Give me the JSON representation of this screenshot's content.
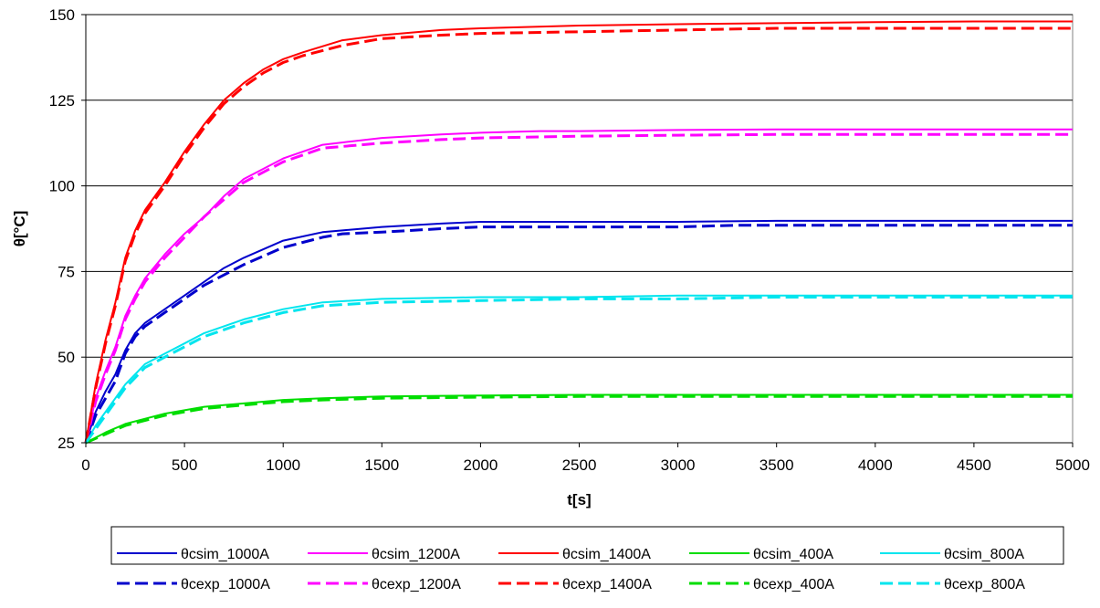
{
  "chart_data": {
    "type": "line",
    "title": "",
    "xlabel": "t[s]",
    "ylabel": "θ[°C]",
    "xlim": [
      0,
      5000
    ],
    "ylim": [
      25,
      150
    ],
    "xticks": [
      0,
      500,
      1000,
      1500,
      2000,
      2500,
      3000,
      3500,
      4000,
      4500,
      5000
    ],
    "yticks": [
      25,
      50,
      75,
      100,
      125,
      150
    ],
    "grid": "horizontal",
    "legend_position": "bottom",
    "series": [
      {
        "name": "θcsim_1000A",
        "color": "#0000cc",
        "style": "solid",
        "x": [
          0,
          50,
          100,
          150,
          200,
          250,
          300,
          400,
          500,
          600,
          700,
          800,
          1000,
          1200,
          1300,
          1500,
          1800,
          2000,
          2500,
          3000,
          3500,
          4000,
          4500,
          5000
        ],
        "y": [
          25,
          34,
          40,
          45,
          52,
          57,
          60,
          64,
          68,
          72,
          76,
          79,
          84,
          86.5,
          87,
          88,
          89,
          89.5,
          89.5,
          89.5,
          89.8,
          89.8,
          89.8,
          89.8
        ]
      },
      {
        "name": "θcsim_1200A",
        "color": "#ff00ff",
        "style": "solid",
        "x": [
          0,
          50,
          100,
          150,
          200,
          250,
          300,
          400,
          500,
          600,
          700,
          800,
          1000,
          1200,
          1500,
          1800,
          2000,
          2300,
          2500,
          3000,
          3500,
          4000,
          4500,
          5000
        ],
        "y": [
          25,
          38,
          46,
          53,
          62,
          68,
          73,
          80,
          86,
          91,
          97,
          102,
          108,
          112,
          114,
          115,
          115.5,
          116,
          116,
          116.3,
          116.5,
          116.5,
          116.5,
          116.5
        ]
      },
      {
        "name": "θcsim_1400A",
        "color": "#ff0000",
        "style": "solid",
        "x": [
          0,
          50,
          100,
          150,
          200,
          250,
          300,
          400,
          500,
          600,
          700,
          800,
          900,
          1000,
          1100,
          1300,
          1500,
          1800,
          2000,
          2500,
          3000,
          3500,
          4000,
          4500,
          5000
        ],
        "y": [
          25,
          42,
          55,
          66,
          79,
          87,
          93,
          101,
          110,
          118,
          125,
          130,
          134,
          137,
          139,
          142.5,
          144,
          145.5,
          146,
          146.8,
          147.2,
          147.5,
          147.8,
          148,
          148
        ]
      },
      {
        "name": "θcsim_400A",
        "color": "#00dd00",
        "style": "solid",
        "x": [
          0,
          100,
          200,
          300,
          400,
          500,
          600,
          800,
          1000,
          1200,
          1500,
          2000,
          2500,
          3000,
          3500,
          4000,
          4500,
          5000
        ],
        "y": [
          25,
          28,
          30.5,
          32,
          33.5,
          34.5,
          35.5,
          36.5,
          37.5,
          38,
          38.5,
          38.8,
          39,
          39,
          39,
          39,
          39,
          39
        ]
      },
      {
        "name": "θcsim_800A",
        "color": "#00e5ee",
        "style": "solid",
        "x": [
          0,
          50,
          100,
          150,
          200,
          250,
          300,
          400,
          500,
          600,
          700,
          800,
          1000,
          1200,
          1500,
          2000,
          2500,
          3000,
          3500,
          4000,
          4500,
          5000
        ],
        "y": [
          25,
          30,
          34,
          38,
          42,
          45,
          48,
          51,
          54,
          57,
          59,
          61,
          64,
          66,
          67,
          67.5,
          67.5,
          68,
          68,
          68,
          68,
          68
        ]
      },
      {
        "name": "θcexp_1000A",
        "color": "#0000cc",
        "style": "dashed",
        "x": [
          0,
          50,
          100,
          150,
          200,
          250,
          300,
          400,
          500,
          600,
          700,
          800,
          1000,
          1200,
          1300,
          1500,
          1800,
          2000,
          2500,
          3000,
          3300,
          3500,
          4000,
          4500,
          5000
        ],
        "y": [
          25,
          33,
          38,
          43,
          51,
          56,
          59,
          63,
          67,
          71,
          74,
          77,
          82,
          85,
          86,
          86.5,
          87.5,
          88,
          88,
          88,
          88.5,
          88.5,
          88.5,
          88.5,
          88.5
        ]
      },
      {
        "name": "θcexp_1200A",
        "color": "#ff00ff",
        "style": "dashed",
        "x": [
          0,
          50,
          100,
          150,
          200,
          250,
          300,
          400,
          500,
          600,
          700,
          800,
          1000,
          1200,
          1500,
          1800,
          2000,
          2500,
          3000,
          3500,
          4000,
          4500,
          5000
        ],
        "y": [
          25,
          37,
          45,
          52,
          61,
          67,
          72,
          79,
          85,
          91,
          96,
          101,
          107,
          111,
          112.5,
          113.5,
          114,
          114.5,
          114.8,
          115,
          115,
          115,
          115
        ]
      },
      {
        "name": "θcexp_1400A",
        "color": "#ff0000",
        "style": "dashed",
        "x": [
          0,
          50,
          100,
          150,
          200,
          250,
          300,
          400,
          500,
          600,
          700,
          800,
          900,
          1000,
          1100,
          1300,
          1500,
          1800,
          2000,
          2500,
          3000,
          3500,
          4000,
          4500,
          5000
        ],
        "y": [
          25,
          41,
          54,
          65,
          78,
          86,
          92,
          100,
          109,
          117,
          124,
          129,
          133,
          136,
          138,
          141,
          143,
          144,
          144.5,
          145,
          145.5,
          146,
          146,
          146,
          146
        ]
      },
      {
        "name": "θcexp_400A",
        "color": "#00dd00",
        "style": "dashed",
        "x": [
          0,
          100,
          200,
          300,
          400,
          500,
          600,
          800,
          1000,
          1200,
          1500,
          2000,
          2500,
          3000,
          3500,
          4000,
          4500,
          5000
        ],
        "y": [
          25,
          27.5,
          30,
          31.5,
          33,
          34,
          35,
          36,
          37,
          37.5,
          38,
          38.3,
          38.5,
          38.5,
          38.5,
          38.5,
          38.5,
          38.5
        ]
      },
      {
        "name": "θcexp_800A",
        "color": "#00e5ee",
        "style": "dashed",
        "x": [
          0,
          50,
          100,
          150,
          200,
          250,
          300,
          400,
          500,
          600,
          700,
          800,
          1000,
          1200,
          1500,
          2000,
          2500,
          3000,
          3500,
          4000,
          4500,
          5000
        ],
        "y": [
          25,
          29,
          33,
          37,
          41,
          44,
          47,
          50,
          53,
          56,
          58,
          60,
          63,
          65,
          66,
          66.5,
          67,
          67,
          67.5,
          67.5,
          67.5,
          67.5
        ]
      }
    ]
  }
}
